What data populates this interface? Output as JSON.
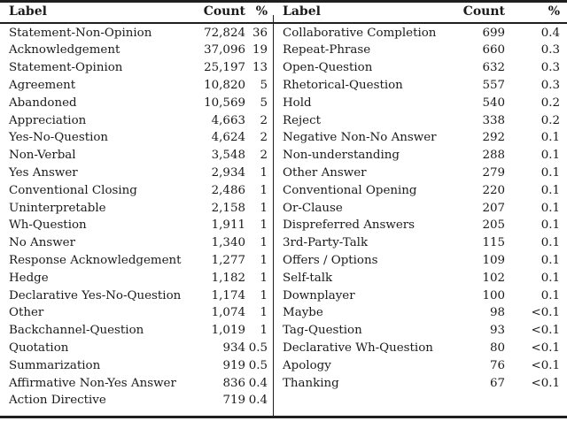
{
  "table": {
    "left": {
      "header": [
        "Label",
        "Count",
        "%"
      ],
      "rows": [
        [
          "Statement-Non-Opinion",
          "72,824",
          "36"
        ],
        [
          "Acknowledgement",
          "37,096",
          "19"
        ],
        [
          "Statement-Opinion",
          "25,197",
          "13"
        ],
        [
          "Agreement",
          "10,820",
          "5"
        ],
        [
          "Abandoned",
          "10,569",
          "5"
        ],
        [
          "Appreciation",
          "4,663",
          "2"
        ],
        [
          "Yes-No-Question",
          "4,624",
          "2"
        ],
        [
          "Non-Verbal",
          "3,548",
          "2"
        ],
        [
          "Yes Answer",
          "2,934",
          "1"
        ],
        [
          "Conventional Closing",
          "2,486",
          "1"
        ],
        [
          "Uninterpretable",
          "2,158",
          "1"
        ],
        [
          "Wh-Question",
          "1,911",
          "1"
        ],
        [
          "No Answer",
          "1,340",
          "1"
        ],
        [
          "Response Acknowledgement",
          "1,277",
          "1"
        ],
        [
          "Hedge",
          "1,182",
          "1"
        ],
        [
          "Declarative Yes-No-Question",
          "1,174",
          "1"
        ],
        [
          "Other",
          "1,074",
          "1"
        ],
        [
          "Backchannel-Question",
          "1,019",
          "1"
        ],
        [
          "Quotation",
          "934",
          "0.5"
        ],
        [
          "Summarization",
          "919",
          "0.5"
        ],
        [
          "Affirmative Non-Yes Answer",
          "836",
          "0.4"
        ],
        [
          "Action Directive",
          "719",
          "0.4"
        ]
      ]
    },
    "right": {
      "header": [
        "Label",
        "Count",
        "%"
      ],
      "rows": [
        [
          "Collaborative Completion",
          "699",
          "0.4"
        ],
        [
          "Repeat-Phrase",
          "660",
          "0.3"
        ],
        [
          "Open-Question",
          "632",
          "0.3"
        ],
        [
          "Rhetorical-Question",
          "557",
          "0.3"
        ],
        [
          "Hold",
          "540",
          "0.2"
        ],
        [
          "Reject",
          "338",
          "0.2"
        ],
        [
          "Negative Non-No Answer",
          "292",
          "0.1"
        ],
        [
          "Non-understanding",
          "288",
          "0.1"
        ],
        [
          "Other Answer",
          "279",
          "0.1"
        ],
        [
          "Conventional Opening",
          "220",
          "0.1"
        ],
        [
          "Or-Clause",
          "207",
          "0.1"
        ],
        [
          "Dispreferred Answers",
          "205",
          "0.1"
        ],
        [
          "3rd-Party-Talk",
          "115",
          "0.1"
        ],
        [
          "Offers / Options",
          "109",
          "0.1"
        ],
        [
          "Self-talk",
          "102",
          "0.1"
        ],
        [
          "Downplayer",
          "100",
          "0.1"
        ],
        [
          "Maybe",
          "98",
          "<0.1"
        ],
        [
          "Tag-Question",
          "93",
          "<0.1"
        ],
        [
          "Declarative Wh-Question",
          "80",
          "<0.1"
        ],
        [
          "Apology",
          "76",
          "<0.1"
        ],
        [
          "Thanking",
          "67",
          "<0.1"
        ]
      ]
    },
    "colors": {
      "rule": "#1f1f1f",
      "text": "#1a1a1a",
      "background": "#ffffff"
    }
  }
}
